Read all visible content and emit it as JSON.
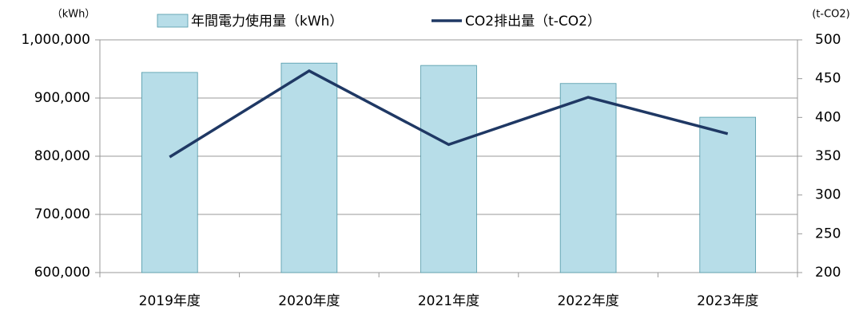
{
  "chart_data": {
    "type": "bar",
    "categories": [
      "2019年度",
      "2020年度",
      "2021年度",
      "2022年度",
      "2023年度"
    ],
    "series": [
      {
        "name": "年間電力使用量（kWh）",
        "type": "bar",
        "color": "#b7dde8",
        "values": [
          944000,
          960000,
          956000,
          925000,
          867000
        ]
      },
      {
        "name": "CO2排出量（t-CO2）",
        "type": "line",
        "axis": "y2",
        "color": "#1f3864",
        "values": [
          349,
          460,
          365,
          426,
          379
        ]
      }
    ],
    "y_label": "（kWh）",
    "y2_label": "(t-CO2)",
    "ylim": [
      600000,
      1000000
    ],
    "yticks": [
      {
        "value": 600000,
        "label": "600,000"
      },
      {
        "value": 700000,
        "label": "700,000"
      },
      {
        "value": 800000,
        "label": "800,000"
      },
      {
        "value": 900000,
        "label": "900,000"
      },
      {
        "value": 1000000,
        "label": "1,000,000"
      }
    ],
    "y2lim": [
      200,
      500
    ],
    "y2ticks": [
      200,
      250,
      300,
      350,
      400,
      450,
      500
    ],
    "grid": true,
    "legend": "top"
  }
}
